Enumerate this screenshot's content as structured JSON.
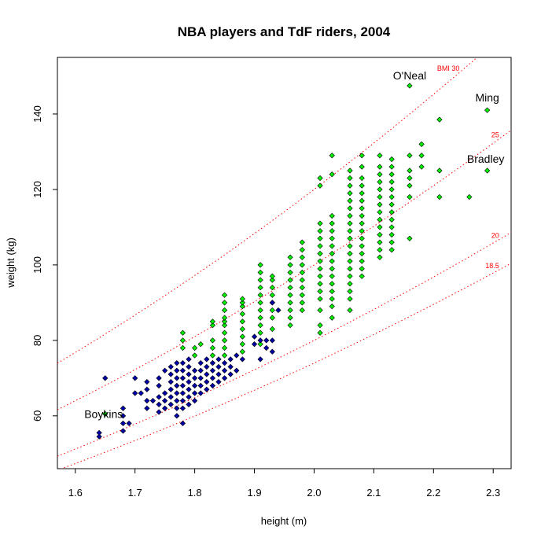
{
  "chart_data": {
    "type": "scatter",
    "title": "NBA players and TdF riders, 2004",
    "xlabel": "height (m)",
    "ylabel": "weight (kg)",
    "xlim": [
      1.57,
      2.33
    ],
    "ylim": [
      46,
      155
    ],
    "x_ticks": [
      "1.6",
      "1.7",
      "1.8",
      "1.9",
      "2.0",
      "2.1",
      "2.2",
      "2.3"
    ],
    "y_ticks": [
      "60",
      "80",
      "100",
      "120",
      "140"
    ],
    "grid": false,
    "legend": "none",
    "colors": {
      "nba_fill": "#00ee00",
      "tdf_fill": "#0000aa",
      "point_stroke": "#000000",
      "bmi_line": "#ff0000"
    },
    "bmi_curves": [
      {
        "bmi": 30,
        "label": "BMI 30"
      },
      {
        "bmi": 25,
        "label": "25"
      },
      {
        "bmi": 20,
        "label": "20"
      },
      {
        "bmi": 18.5,
        "label": "18.5"
      }
    ],
    "annotations": [
      {
        "text": "O'Neal",
        "x": 2.16,
        "y": 147.5
      },
      {
        "text": "Ming",
        "x": 2.29,
        "y": 141
      },
      {
        "text": "Bradley",
        "x": 2.29,
        "y": 125
      },
      {
        "text": "Boykins",
        "x": 1.65,
        "y": 60.5
      }
    ],
    "series": [
      {
        "name": "NBA",
        "points": [
          [
            1.65,
            60.5
          ],
          [
            1.78,
            78
          ],
          [
            1.78,
            80
          ],
          [
            1.78,
            82
          ],
          [
            1.8,
            76
          ],
          [
            1.8,
            78
          ],
          [
            1.81,
            79
          ],
          [
            1.83,
            74
          ],
          [
            1.83,
            76
          ],
          [
            1.83,
            78
          ],
          [
            1.83,
            80
          ],
          [
            1.83,
            84
          ],
          [
            1.83,
            85
          ],
          [
            1.85,
            76
          ],
          [
            1.85,
            78
          ],
          [
            1.85,
            80
          ],
          [
            1.85,
            82
          ],
          [
            1.85,
            84
          ],
          [
            1.85,
            85
          ],
          [
            1.85,
            86
          ],
          [
            1.85,
            88
          ],
          [
            1.85,
            90
          ],
          [
            1.85,
            92
          ],
          [
            1.88,
            77
          ],
          [
            1.88,
            79
          ],
          [
            1.88,
            81
          ],
          [
            1.88,
            83
          ],
          [
            1.88,
            85
          ],
          [
            1.88,
            87
          ],
          [
            1.88,
            89
          ],
          [
            1.88,
            90
          ],
          [
            1.88,
            91
          ],
          [
            1.91,
            79
          ],
          [
            1.91,
            82
          ],
          [
            1.91,
            84
          ],
          [
            1.91,
            86
          ],
          [
            1.91,
            88
          ],
          [
            1.91,
            90
          ],
          [
            1.91,
            92
          ],
          [
            1.91,
            94
          ],
          [
            1.91,
            96
          ],
          [
            1.91,
            98
          ],
          [
            1.91,
            100
          ],
          [
            1.93,
            83
          ],
          [
            1.93,
            86
          ],
          [
            1.93,
            88
          ],
          [
            1.93,
            90
          ],
          [
            1.93,
            92
          ],
          [
            1.93,
            94
          ],
          [
            1.93,
            96
          ],
          [
            1.93,
            97
          ],
          [
            1.96,
            84
          ],
          [
            1.96,
            86
          ],
          [
            1.96,
            88
          ],
          [
            1.96,
            90
          ],
          [
            1.96,
            92
          ],
          [
            1.96,
            94
          ],
          [
            1.96,
            96
          ],
          [
            1.96,
            98
          ],
          [
            1.96,
            100
          ],
          [
            1.96,
            102
          ],
          [
            1.98,
            88
          ],
          [
            1.98,
            90
          ],
          [
            1.98,
            92
          ],
          [
            1.98,
            94
          ],
          [
            1.98,
            96
          ],
          [
            1.98,
            98
          ],
          [
            1.98,
            100
          ],
          [
            1.98,
            102
          ],
          [
            1.98,
            104
          ],
          [
            1.98,
            106
          ],
          [
            2.01,
            82
          ],
          [
            2.01,
            84
          ],
          [
            2.01,
            88
          ],
          [
            2.01,
            91
          ],
          [
            2.01,
            93
          ],
          [
            2.01,
            95
          ],
          [
            2.01,
            97
          ],
          [
            2.01,
            99
          ],
          [
            2.01,
            101
          ],
          [
            2.01,
            103
          ],
          [
            2.01,
            105
          ],
          [
            2.01,
            107
          ],
          [
            2.01,
            109
          ],
          [
            2.01,
            111
          ],
          [
            2.01,
            121
          ],
          [
            2.01,
            123
          ],
          [
            2.03,
            86
          ],
          [
            2.03,
            89
          ],
          [
            2.03,
            91
          ],
          [
            2.03,
            93
          ],
          [
            2.03,
            95
          ],
          [
            2.03,
            97
          ],
          [
            2.03,
            99
          ],
          [
            2.03,
            101
          ],
          [
            2.03,
            103
          ],
          [
            2.03,
            105
          ],
          [
            2.03,
            107
          ],
          [
            2.03,
            109
          ],
          [
            2.03,
            111
          ],
          [
            2.03,
            113
          ],
          [
            2.03,
            124
          ],
          [
            2.03,
            129
          ],
          [
            2.06,
            88
          ],
          [
            2.06,
            91
          ],
          [
            2.06,
            93
          ],
          [
            2.06,
            95
          ],
          [
            2.06,
            97
          ],
          [
            2.06,
            99
          ],
          [
            2.06,
            101
          ],
          [
            2.06,
            103
          ],
          [
            2.06,
            105
          ],
          [
            2.06,
            107
          ],
          [
            2.06,
            109
          ],
          [
            2.06,
            111
          ],
          [
            2.06,
            113
          ],
          [
            2.06,
            115
          ],
          [
            2.06,
            117
          ],
          [
            2.06,
            119
          ],
          [
            2.06,
            121
          ],
          [
            2.06,
            123
          ],
          [
            2.06,
            125
          ],
          [
            2.08,
            97
          ],
          [
            2.08,
            99
          ],
          [
            2.08,
            101
          ],
          [
            2.08,
            103
          ],
          [
            2.08,
            105
          ],
          [
            2.08,
            107
          ],
          [
            2.08,
            109
          ],
          [
            2.08,
            111
          ],
          [
            2.08,
            113
          ],
          [
            2.08,
            115
          ],
          [
            2.08,
            117
          ],
          [
            2.08,
            119
          ],
          [
            2.08,
            121
          ],
          [
            2.08,
            123
          ],
          [
            2.08,
            126
          ],
          [
            2.08,
            129
          ],
          [
            2.11,
            102
          ],
          [
            2.11,
            104
          ],
          [
            2.11,
            106
          ],
          [
            2.11,
            108
          ],
          [
            2.11,
            110
          ],
          [
            2.11,
            112
          ],
          [
            2.11,
            114
          ],
          [
            2.11,
            116
          ],
          [
            2.11,
            118
          ],
          [
            2.11,
            120
          ],
          [
            2.11,
            122
          ],
          [
            2.11,
            124
          ],
          [
            2.11,
            126
          ],
          [
            2.11,
            129
          ],
          [
            2.13,
            104
          ],
          [
            2.13,
            106
          ],
          [
            2.13,
            108
          ],
          [
            2.13,
            110
          ],
          [
            2.13,
            112
          ],
          [
            2.13,
            114
          ],
          [
            2.13,
            116
          ],
          [
            2.13,
            118
          ],
          [
            2.13,
            120
          ],
          [
            2.13,
            122
          ],
          [
            2.13,
            124
          ],
          [
            2.13,
            126
          ],
          [
            2.13,
            128
          ],
          [
            2.16,
            107
          ],
          [
            2.16,
            118
          ],
          [
            2.16,
            121
          ],
          [
            2.16,
            123
          ],
          [
            2.16,
            125
          ],
          [
            2.16,
            129
          ],
          [
            2.16,
            147.5
          ],
          [
            2.18,
            126
          ],
          [
            2.18,
            129
          ],
          [
            2.18,
            132
          ],
          [
            2.21,
            118
          ],
          [
            2.21,
            125
          ],
          [
            2.21,
            138.5
          ],
          [
            2.26,
            118
          ],
          [
            2.29,
            125
          ],
          [
            2.29,
            141
          ]
        ]
      },
      {
        "name": "TdF",
        "points": [
          [
            1.64,
            54.5
          ],
          [
            1.64,
            55.5
          ],
          [
            1.65,
            70
          ],
          [
            1.68,
            56
          ],
          [
            1.68,
            58
          ],
          [
            1.68,
            60
          ],
          [
            1.68,
            62
          ],
          [
            1.69,
            58
          ],
          [
            1.7,
            66
          ],
          [
            1.7,
            70
          ],
          [
            1.71,
            66
          ],
          [
            1.72,
            62
          ],
          [
            1.72,
            64
          ],
          [
            1.72,
            67
          ],
          [
            1.72,
            69
          ],
          [
            1.73,
            64
          ],
          [
            1.74,
            61
          ],
          [
            1.74,
            63
          ],
          [
            1.74,
            65
          ],
          [
            1.74,
            68
          ],
          [
            1.74,
            70
          ],
          [
            1.75,
            62
          ],
          [
            1.75,
            64
          ],
          [
            1.75,
            66
          ],
          [
            1.75,
            72
          ],
          [
            1.76,
            63
          ],
          [
            1.76,
            65
          ],
          [
            1.76,
            67
          ],
          [
            1.76,
            69
          ],
          [
            1.76,
            71
          ],
          [
            1.76,
            73
          ],
          [
            1.77,
            60
          ],
          [
            1.77,
            62
          ],
          [
            1.77,
            64
          ],
          [
            1.77,
            66
          ],
          [
            1.77,
            68
          ],
          [
            1.77,
            70
          ],
          [
            1.77,
            72
          ],
          [
            1.77,
            74
          ],
          [
            1.78,
            58
          ],
          [
            1.78,
            62
          ],
          [
            1.78,
            64
          ],
          [
            1.78,
            66
          ],
          [
            1.78,
            68
          ],
          [
            1.78,
            70
          ],
          [
            1.78,
            72
          ],
          [
            1.78,
            74
          ],
          [
            1.79,
            63
          ],
          [
            1.79,
            65
          ],
          [
            1.79,
            67
          ],
          [
            1.79,
            69
          ],
          [
            1.79,
            71
          ],
          [
            1.79,
            73
          ],
          [
            1.79,
            75
          ],
          [
            1.8,
            64
          ],
          [
            1.8,
            66
          ],
          [
            1.8,
            68
          ],
          [
            1.8,
            70
          ],
          [
            1.8,
            72
          ],
          [
            1.81,
            66
          ],
          [
            1.81,
            68
          ],
          [
            1.81,
            70
          ],
          [
            1.81,
            72
          ],
          [
            1.81,
            74
          ],
          [
            1.82,
            67
          ],
          [
            1.82,
            69
          ],
          [
            1.82,
            71
          ],
          [
            1.82,
            73
          ],
          [
            1.82,
            75
          ],
          [
            1.83,
            68
          ],
          [
            1.83,
            70
          ],
          [
            1.83,
            72
          ],
          [
            1.83,
            74
          ],
          [
            1.84,
            69
          ],
          [
            1.84,
            71
          ],
          [
            1.84,
            73
          ],
          [
            1.84,
            75
          ],
          [
            1.85,
            70
          ],
          [
            1.85,
            72
          ],
          [
            1.85,
            74
          ],
          [
            1.86,
            71
          ],
          [
            1.86,
            73
          ],
          [
            1.86,
            75
          ],
          [
            1.87,
            72
          ],
          [
            1.87,
            76
          ],
          [
            1.88,
            75
          ],
          [
            1.9,
            79
          ],
          [
            1.9,
            81
          ],
          [
            1.91,
            75
          ],
          [
            1.91,
            80
          ],
          [
            1.92,
            78
          ],
          [
            1.92,
            80
          ],
          [
            1.93,
            77
          ],
          [
            1.93,
            80
          ],
          [
            1.93,
            90
          ],
          [
            1.94,
            88
          ]
        ]
      }
    ]
  }
}
